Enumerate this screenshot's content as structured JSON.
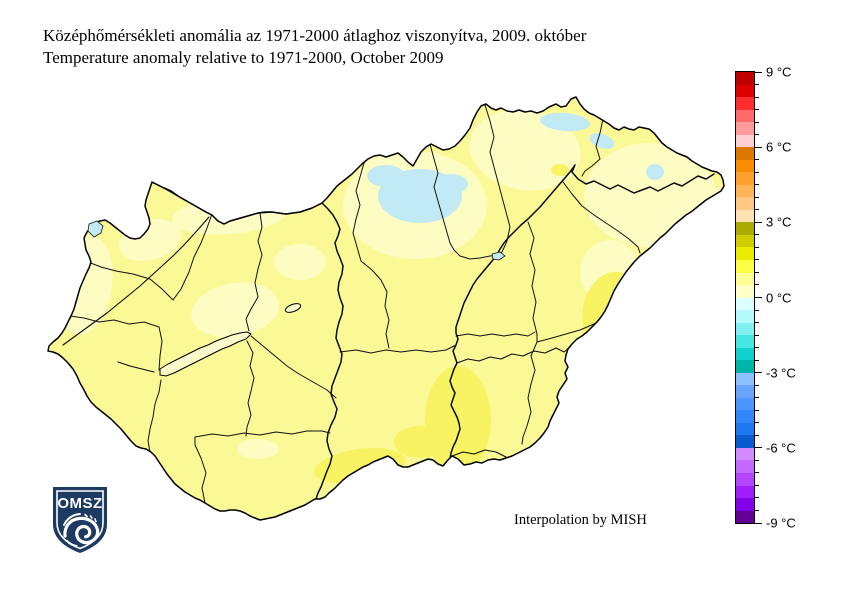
{
  "header": {
    "title_hu": "Középhőmérsékleti anomália az 1971-2000 átlaghoz viszonyítva, 2009. október",
    "title_en": "Temperature anomaly relative to 1971-2000, October 2009"
  },
  "map": {
    "region": "Hungary",
    "attribution": "Interpolation by MISH",
    "fills": {
      "base": "#FBF996",
      "light": "#FDFCC2",
      "deep": "#F7F363",
      "neg": "#C2EAF5",
      "lake": "#FBFACA"
    },
    "anomaly_reading": [
      {
        "band": "0.5 to 1 °C",
        "color": "#FBF996",
        "coverage": "most of the country"
      },
      {
        "band": "0 to 0.5 °C",
        "color": "#FDFCC2",
        "coverage": "northern hills, north-east and western fringe"
      },
      {
        "band": "1 to 1.5 °C",
        "color": "#F7F363",
        "coverage": "southern Tisza valley and far south"
      },
      {
        "band": "-0.5 to 0 °C",
        "color": "#C2EAF5",
        "coverage": "small spots along the northern mountains"
      }
    ],
    "features": [
      "country-border",
      "county-borders",
      "danube-river",
      "tisza-river",
      "koros-river",
      "maros-river",
      "raba-river",
      "lake-balaton",
      "lake-velence",
      "lake-ferto",
      "lake-tisza"
    ]
  },
  "colorbar": {
    "unit": "°C",
    "max": 9,
    "min": -9,
    "degrees_per_segment": 0.5,
    "tick_labels": [
      "9 °C",
      "6 °C",
      "3 °C",
      "0 °C",
      "-3 °C",
      "-6 °C",
      "-9 °C"
    ],
    "segment_colors_top_to_bottom": [
      "#BE0000",
      "#DC0000",
      "#FF2D2D",
      "#FF6B6B",
      "#FF9B9B",
      "#FFCFCF",
      "#DC7800",
      "#FA8C00",
      "#FFA030",
      "#FFB45A",
      "#FFC882",
      "#FFE1B4",
      "#AAAA00",
      "#CDCD00",
      "#EBEB00",
      "#FFFF46",
      "#FFFF96",
      "#FFFFC8",
      "#DCFFFF",
      "#B4FAFA",
      "#82F0F0",
      "#46E6E1",
      "#0FD2CD",
      "#00B4AA",
      "#8CC3FF",
      "#69A5FF",
      "#4B96FF",
      "#3287FF",
      "#1E78F0",
      "#0A5AD2",
      "#D28CFF",
      "#C369FF",
      "#B446FF",
      "#A01EFF",
      "#8200E6",
      "#640096"
    ]
  },
  "logo": {
    "text": "OMSZ",
    "shield_color": "#1C3A62"
  }
}
